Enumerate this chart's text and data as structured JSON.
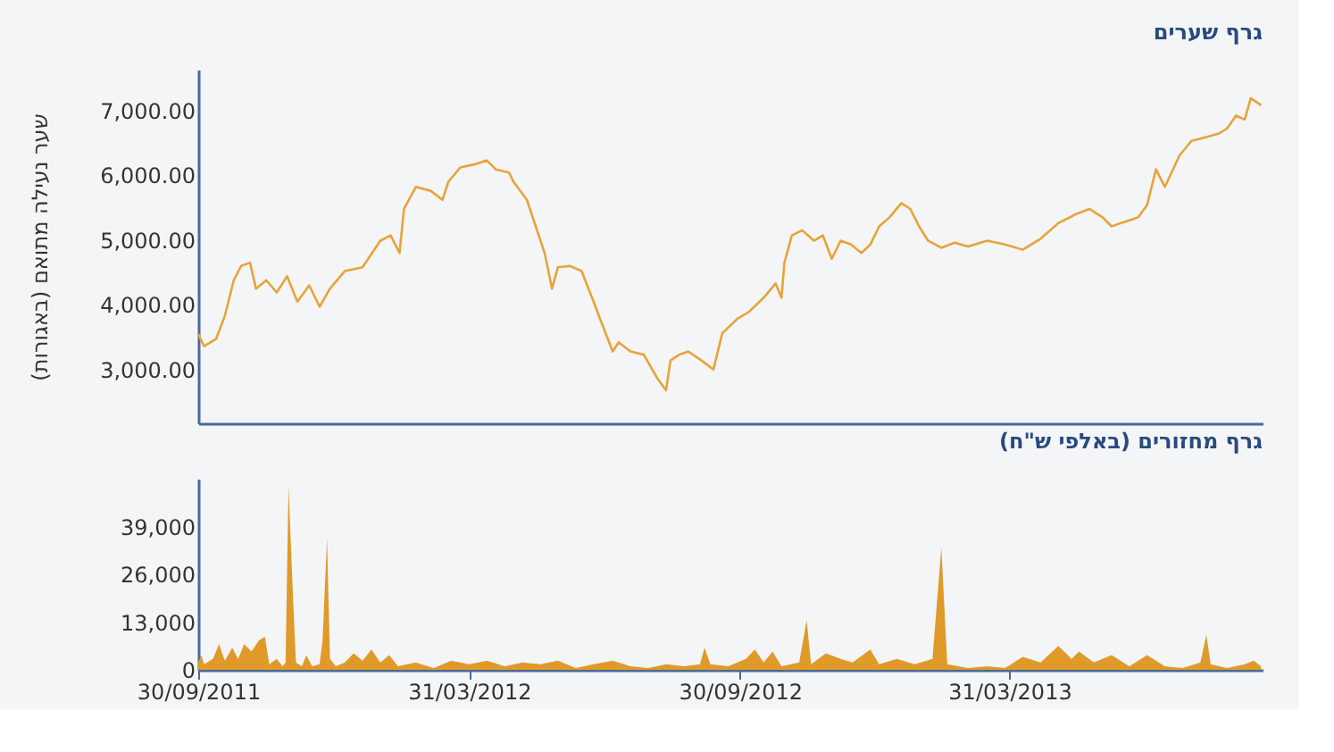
{
  "chart_data": [
    {
      "type": "line",
      "title": "גרף שערים",
      "ylabel": "שער נעילה מתואם (באגורות)",
      "x": [
        "2011-09-30",
        "2011-10-04",
        "2011-10-12",
        "2011-10-18",
        "2011-10-24",
        "2011-10-29",
        "2011-11-04",
        "2011-11-08",
        "2011-11-15",
        "2011-11-22",
        "2011-11-29",
        "2011-12-06",
        "2011-12-14",
        "2011-12-21",
        "2011-12-28",
        "2012-01-07",
        "2012-01-19",
        "2012-01-31",
        "2012-02-07",
        "2012-02-13",
        "2012-02-16",
        "2012-02-24",
        "2012-03-05",
        "2012-03-13",
        "2012-03-17",
        "2012-03-25",
        "2012-04-04",
        "2012-04-12",
        "2012-04-18",
        "2012-04-27",
        "2012-04-30",
        "2012-05-09",
        "2012-05-15",
        "2012-05-21",
        "2012-05-26",
        "2012-05-30",
        "2012-06-07",
        "2012-06-15",
        "2012-06-22",
        "2012-06-29",
        "2012-07-06",
        "2012-07-10",
        "2012-07-18",
        "2012-07-27",
        "2012-08-05",
        "2012-08-11",
        "2012-08-14",
        "2012-08-20",
        "2012-08-26",
        "2012-09-04",
        "2012-09-12",
        "2012-09-18",
        "2012-09-28",
        "2012-10-06",
        "2012-10-16",
        "2012-10-24",
        "2012-10-28",
        "2012-10-30",
        "2012-11-04",
        "2012-11-11",
        "2012-11-19",
        "2012-11-25",
        "2012-12-01",
        "2012-12-07",
        "2012-12-14",
        "2012-12-21",
        "2012-12-27",
        "2013-01-02",
        "2013-01-09",
        "2013-01-17",
        "2013-01-23",
        "2013-01-29",
        "2013-02-04",
        "2013-02-13",
        "2013-02-22",
        "2013-03-03",
        "2013-03-16",
        "2013-03-28",
        "2013-04-09",
        "2013-04-21",
        "2013-05-03",
        "2013-05-15",
        "2013-05-24",
        "2013-06-02",
        "2013-06-08",
        "2013-06-14",
        "2013-06-26",
        "2013-07-02",
        "2013-07-08",
        "2013-07-14",
        "2013-07-24",
        "2013-08-01",
        "2013-08-11",
        "2013-08-19",
        "2013-08-25",
        "2013-08-31",
        "2013-09-06",
        "2013-09-10",
        "2013-09-17"
      ],
      "series": [
        {
          "color": "#e8a33a",
          "values": [
            3550,
            3360,
            3470,
            3830,
            4380,
            4600,
            4650,
            4250,
            4380,
            4190,
            4440,
            4050,
            4300,
            3970,
            4250,
            4520,
            4580,
            4990,
            5070,
            4800,
            5480,
            5820,
            5760,
            5620,
            5900,
            6120,
            6170,
            6230,
            6090,
            6040,
            5900,
            5620,
            5210,
            4800,
            4250,
            4580,
            4600,
            4520,
            4110,
            3690,
            3280,
            3420,
            3280,
            3230,
            2870,
            2680,
            3140,
            3230,
            3280,
            3140,
            3000,
            3560,
            3780,
            3890,
            4110,
            4330,
            4110,
            4650,
            5070,
            5150,
            4990,
            5070,
            4710,
            4990,
            4930,
            4800,
            4930,
            5210,
            5350,
            5570,
            5480,
            5210,
            4990,
            4880,
            4960,
            4900,
            4990,
            4930,
            4850,
            5020,
            5260,
            5400,
            5480,
            5350,
            5210,
            5260,
            5350,
            5540,
            6090,
            5820,
            6310,
            6530,
            6590,
            6640,
            6720,
            6920,
            6860,
            7190,
            7080
          ]
        }
      ],
      "xlim": [
        "2011-09-30",
        "2013-09-18"
      ],
      "ylim": [
        2170,
        7630
      ],
      "yticks": [
        {
          "value": 3000,
          "label": "3,000.00"
        },
        {
          "value": 4000,
          "label": "4,000.00"
        },
        {
          "value": 5000,
          "label": "5,000.00"
        },
        {
          "value": 6000,
          "label": "6,000.00"
        },
        {
          "value": 7000,
          "label": "7,000.00"
        }
      ],
      "tick_labels": "y",
      "grid": false,
      "line_style": "solid",
      "marker": "none"
    },
    {
      "type": "area",
      "title": "גרף מחזורים (באלפי ש\"ח)",
      "x": [
        "2011-09-30",
        "2011-10-02",
        "2011-10-04",
        "2011-10-10",
        "2011-10-14",
        "2011-10-18",
        "2011-10-23",
        "2011-10-27",
        "2011-10-31",
        "2011-11-05",
        "2011-11-10",
        "2011-11-14",
        "2011-11-17",
        "2011-11-22",
        "2011-11-26",
        "2011-11-28",
        "2011-11-30",
        "2011-12-03",
        "2011-12-05",
        "2011-12-09",
        "2011-12-12",
        "2011-12-16",
        "2011-12-21",
        "2011-12-23",
        "2011-12-26",
        "2011-12-28",
        "2012-01-01",
        "2012-01-07",
        "2012-01-13",
        "2012-01-19",
        "2012-01-25",
        "2012-01-31",
        "2012-02-06",
        "2012-02-12",
        "2012-02-24",
        "2012-03-07",
        "2012-03-19",
        "2012-03-31",
        "2012-04-12",
        "2012-04-24",
        "2012-05-06",
        "2012-05-18",
        "2012-05-30",
        "2012-06-11",
        "2012-06-23",
        "2012-07-06",
        "2012-07-18",
        "2012-07-30",
        "2012-08-11",
        "2012-08-23",
        "2012-09-03",
        "2012-09-06",
        "2012-09-10",
        "2012-09-22",
        "2012-10-04",
        "2012-10-10",
        "2012-10-16",
        "2012-10-22",
        "2012-10-28",
        "2012-11-09",
        "2012-11-14",
        "2012-11-17",
        "2012-11-27",
        "2012-12-07",
        "2012-12-15",
        "2012-12-27",
        "2013-01-02",
        "2013-01-14",
        "2013-01-26",
        "2013-02-07",
        "2013-02-13",
        "2013-02-17",
        "2013-03-03",
        "2013-03-16",
        "2013-03-28",
        "2013-04-09",
        "2013-04-21",
        "2013-05-03",
        "2013-05-12",
        "2013-05-17",
        "2013-05-27",
        "2013-06-08",
        "2013-06-20",
        "2013-07-02",
        "2013-07-14",
        "2013-07-26",
        "2013-08-07",
        "2013-08-11",
        "2013-08-14",
        "2013-08-25",
        "2013-09-06",
        "2013-09-12",
        "2013-09-17"
      ],
      "series": [
        {
          "color": "#e09a2a",
          "values": [
            2000,
            4000,
            1500,
            3000,
            7000,
            2500,
            6000,
            3000,
            7000,
            5000,
            8000,
            9000,
            1500,
            3000,
            1000,
            2000,
            50000,
            20000,
            2000,
            1000,
            4000,
            1000,
            1500,
            8000,
            35800,
            3000,
            1000,
            2000,
            4500,
            2500,
            5500,
            2000,
            4000,
            1000,
            2000,
            500,
            2500,
            1500,
            2500,
            1000,
            2000,
            1500,
            2500,
            500,
            1500,
            2500,
            1000,
            500,
            1500,
            1000,
            1500,
            6000,
            1500,
            1000,
            3000,
            5500,
            2000,
            5000,
            1000,
            2000,
            13500,
            1500,
            4500,
            3000,
            2000,
            5500,
            1500,
            3000,
            1500,
            3000,
            33200,
            1500,
            500,
            1000,
            500,
            3500,
            2000,
            6500,
            3000,
            5000,
            2000,
            4000,
            1000,
            4000,
            1000,
            500,
            2000,
            9400,
            1500,
            500,
            1500,
            2500,
            1000
          ]
        }
      ],
      "xlim": [
        "2011-09-30",
        "2013-09-18"
      ],
      "ylim": [
        0,
        52000
      ],
      "yticks": [
        0,
        {
          "value": 13000,
          "label": "13,000"
        },
        {
          "value": 26000,
          "label": "26,000"
        },
        {
          "value": 39000,
          "label": "39,000"
        }
      ],
      "xticks": [
        {
          "value": "2011-09-30",
          "label": "30/09/2011"
        },
        {
          "value": "2012-03-31",
          "label": "31/03/2012"
        },
        {
          "value": "2012-09-30",
          "label": "30/09/2012"
        },
        {
          "value": "2013-03-31",
          "label": "31/03/2013"
        }
      ],
      "grid": false
    }
  ]
}
